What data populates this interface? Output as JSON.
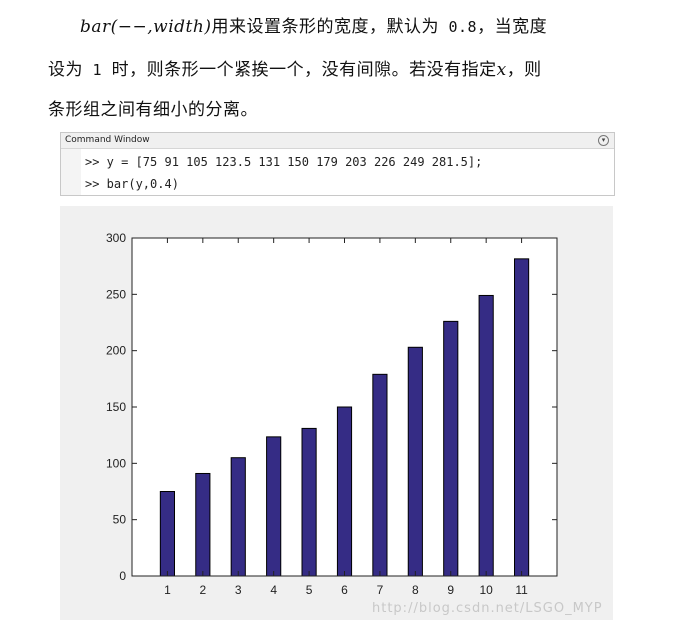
{
  "text": {
    "line1_math": "bar(−−,width)",
    "line1_text": "用来设置条形的宽度，默认为",
    "line1_num": " 0.8",
    "line1_end": "，当宽度",
    "line2_a": "设为",
    "line2_num": " 1 ",
    "line2_b": "时，则条形一个紧挨一个，没有间隙。若没有指定",
    "line2_math": "x",
    "line2_c": "，则",
    "line3": "条形组之间有细小的分离。"
  },
  "command_window": {
    "title": "Command Window",
    "line1": ">> y = [75 91 105 123.5 131 150 179 203 226 249 281.5];",
    "line2": ">> bar(y,0.4)"
  },
  "chart_data": {
    "type": "bar",
    "categories": [
      "1",
      "2",
      "3",
      "4",
      "5",
      "6",
      "7",
      "8",
      "9",
      "10",
      "11"
    ],
    "values": [
      75,
      91,
      105,
      123.5,
      131,
      150,
      179,
      203,
      226,
      249,
      281.5
    ],
    "bar_width": 0.4,
    "ylim": [
      0,
      300
    ],
    "yticks": [
      0,
      50,
      100,
      150,
      200,
      250,
      300
    ],
    "bar_color": "#352c85",
    "grid": false
  },
  "watermark": "http://blog.csdn.net/LSGO_MYP"
}
